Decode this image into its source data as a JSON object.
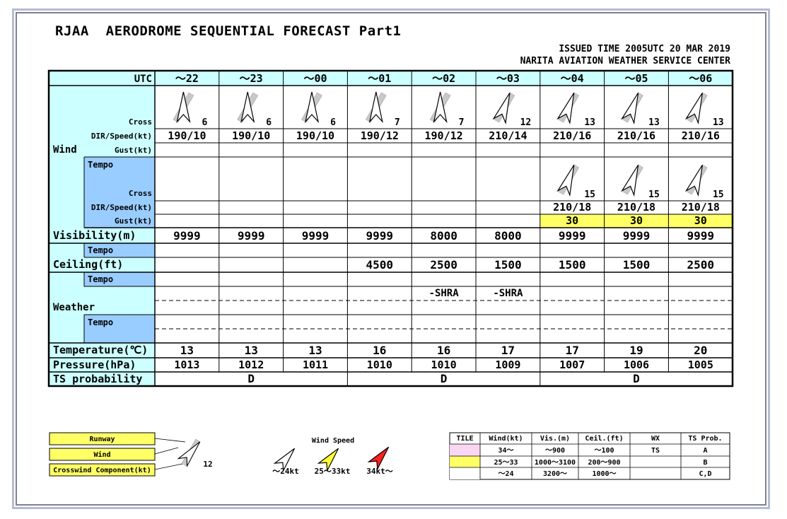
{
  "header": {
    "title": "RJAA  AERODROME SEQUENTIAL FORECAST Part1",
    "issued": "ISSUED TIME 2005UTC 20 MAR 2019",
    "center": "NARITA AVIATION WEATHER SERVICE CENTER"
  },
  "labels": {
    "utc": "UTC",
    "cross": "Cross",
    "dir_speed": "DIR/Speed(kt)",
    "gust": "Gust(kt)",
    "wind": "Wind",
    "tempo": "Tempo",
    "visibility": "Visibility(m)",
    "ceiling": "Ceiling(ft)",
    "weather": "Weather",
    "temperature": "Temperature(℃)",
    "pressure": "Pressure(hPa)",
    "ts_probability": "TS probability"
  },
  "columns": [
    "～22",
    "～23",
    "～00",
    "～01",
    "～02",
    "～03",
    "～04",
    "～05",
    "～06"
  ],
  "wind": {
    "dirs": [
      190,
      190,
      190,
      190,
      190,
      210,
      210,
      210,
      210
    ],
    "cross": [
      "6",
      "6",
      "6",
      "7",
      "7",
      "12",
      "13",
      "13",
      "13"
    ],
    "dir_speed": [
      "190/10",
      "190/10",
      "190/10",
      "190/12",
      "190/12",
      "210/14",
      "210/16",
      "210/16",
      "210/16"
    ],
    "gust": [
      "",
      "",
      "",
      "",
      "",
      "",
      "",
      "",
      ""
    ],
    "tempo_dirs": [
      null,
      null,
      null,
      null,
      null,
      null,
      210,
      210,
      210
    ],
    "tempo_cross": [
      "",
      "",
      "",
      "",
      "",
      "",
      "15",
      "15",
      "15"
    ],
    "tempo_dir_speed": [
      "",
      "",
      "",
      "",
      "",
      "",
      "210/18",
      "210/18",
      "210/18"
    ],
    "tempo_gust": [
      "",
      "",
      "",
      "",
      "",
      "",
      "30",
      "30",
      "30"
    ]
  },
  "visibility": [
    "9999",
    "9999",
    "9999",
    "9999",
    "8000",
    "8000",
    "9999",
    "9999",
    "9999"
  ],
  "visibility_tempo": [
    "",
    "",
    "",
    "",
    "",
    "",
    "",
    "",
    ""
  ],
  "ceiling": [
    "",
    "",
    "",
    "4500",
    "2500",
    "1500",
    "1500",
    "1500",
    "2500"
  ],
  "ceiling_tempo": [
    "",
    "",
    "",
    "",
    "",
    "",
    "",
    "",
    ""
  ],
  "weather": [
    "",
    "",
    "",
    "",
    "-SHRA",
    "-SHRA",
    "",
    "",
    ""
  ],
  "weather_tempo": [
    "",
    "",
    "",
    "",
    "",
    "",
    "",
    "",
    ""
  ],
  "temperature": [
    "13",
    "13",
    "13",
    "16",
    "16",
    "17",
    "17",
    "19",
    "20"
  ],
  "pressure": [
    "1013",
    "1012",
    "1011",
    "1010",
    "1010",
    "1009",
    "1007",
    "1006",
    "1005"
  ],
  "ts_probability": [
    "D",
    "D",
    "D"
  ],
  "legend": {
    "runway": "Runway",
    "wind": "Wind",
    "crosswind": "Crosswind Component(kt)",
    "example_value": "12",
    "wind_speed_title": "Wind Speed",
    "speed_low": "～24kt",
    "speed_mid": "25～33kt",
    "speed_high": "34kt～"
  },
  "tile_table": {
    "headers": [
      "TILE",
      "Wind(kt)",
      "Vis.(m)",
      "Ceil.(ft)",
      "WX",
      "TS Prob."
    ],
    "rows": [
      {
        "color": "#f9d7f3",
        "cells": [
          "34～",
          "～900",
          "～100",
          "TS",
          "A"
        ]
      },
      {
        "color": "#ffff66",
        "cells": [
          "25～33",
          "1000～3100",
          "200～900",
          "",
          "B"
        ]
      },
      {
        "color": "#ffffff",
        "cells": [
          "～24",
          "3200～",
          "1000～",
          "",
          "C,D"
        ]
      }
    ]
  },
  "colors": {
    "label_cyan": "#ccffff",
    "label_blue": "#99ccff",
    "highlight_yellow": "#ffff66",
    "arrow_red": "#ff2020"
  }
}
